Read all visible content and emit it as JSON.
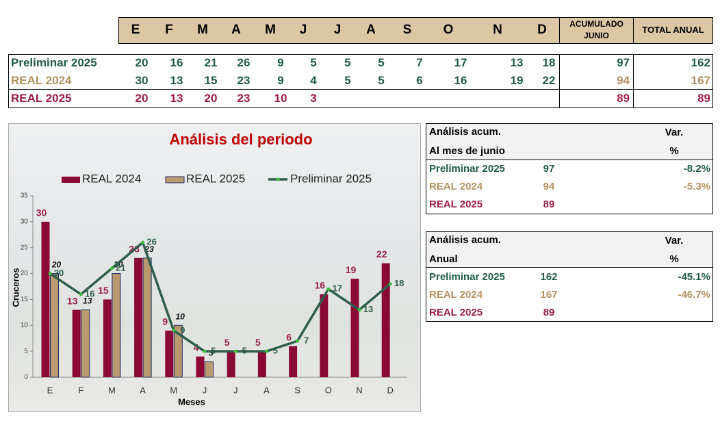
{
  "table": {
    "acumulado_header": "ACUMULADO JUNIO",
    "total_header": "TOTAL ANUAL",
    "rows": [
      {
        "acumulado": 97,
        "total": 162
      },
      {
        "acumulado": 94,
        "total": 167
      },
      {
        "acumulado": 89,
        "total": 89
      }
    ]
  },
  "chart_data": {
    "type": "bar",
    "title": "Análisis del periodo",
    "x_label": "Meses",
    "y_label": "Cruceros",
    "categories": [
      "E",
      "F",
      "M",
      "A",
      "M",
      "J",
      "J",
      "A",
      "S",
      "O",
      "N",
      "D"
    ],
    "series": [
      {
        "name": "REAL 2024",
        "type": "bar",
        "color": "#8b0a35",
        "values": [
          30,
          13,
          15,
          23,
          9,
          4,
          5,
          5,
          6,
          16,
          19,
          22
        ]
      },
      {
        "name": "REAL 2025",
        "type": "bar",
        "color": "#b89a6e",
        "values": [
          20,
          13,
          20,
          23,
          10,
          3,
          null,
          null,
          null,
          null,
          null,
          null
        ]
      },
      {
        "name": "Preliminar 2025",
        "type": "line",
        "color": "#2e5e4a",
        "values": [
          20,
          16,
          21,
          26,
          9,
          5,
          5,
          5,
          7,
          17,
          13,
          18
        ]
      }
    ],
    "ylim": [
      0,
      35
    ],
    "yticks": [
      0,
      5,
      10,
      15,
      20,
      25,
      30,
      35
    ],
    "legend": "top"
  },
  "analysis": [
    {
      "title": "Análisis acum.",
      "subtitle": "Al mes de junio",
      "var_header": "Var.",
      "pct_header": "%",
      "vars": [
        "-8.2%",
        "-5.3%"
      ]
    },
    {
      "title": "Análisis acum.",
      "subtitle": "Anual",
      "var_header": "Var.",
      "pct_header": "%",
      "vars": [
        "-45.1%",
        "-46.7%"
      ]
    }
  ]
}
